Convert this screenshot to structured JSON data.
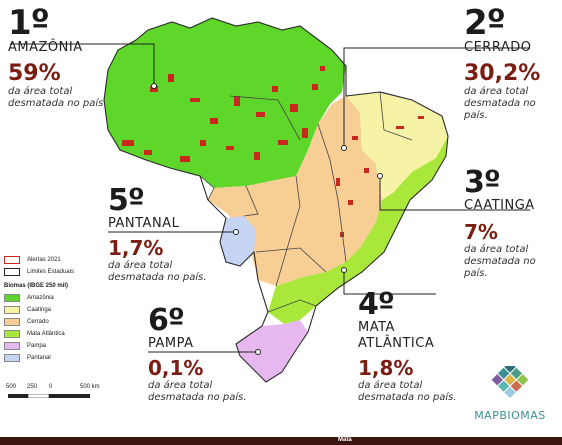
{
  "callouts": [
    {
      "rank": "1º",
      "biome": "AMAZÔNIA",
      "percent": "59%",
      "desc1": "da área total",
      "desc2": "desmatada no país"
    },
    {
      "rank": "2º",
      "biome": "CERRADO",
      "percent": "30,2%",
      "desc1": "da área total",
      "desc2": "desmatada no país."
    },
    {
      "rank": "3º",
      "biome": "CAATINGA",
      "percent": "7%",
      "desc1": "da área total",
      "desc2": "desmatada no país."
    },
    {
      "rank": "4º",
      "biome": "MATA",
      "biome2": "ATLÂNTICA",
      "percent": "1,8%",
      "desc1": "da área total",
      "desc2": "desmatada no país."
    },
    {
      "rank": "5º",
      "biome": "PANTANAL",
      "percent": "1,7%",
      "desc1": "da área total",
      "desc2": "desmatada no país."
    },
    {
      "rank": "6º",
      "biome": "PAMPA",
      "percent": "0,1%",
      "desc1": "da área total",
      "desc2": "desmatada no país."
    }
  ],
  "legend": {
    "alerts": "Alertas 2021",
    "state_limits": "Limites Estaduais",
    "title": "Biomas (IBGE 250 mil)",
    "biomes": [
      {
        "name": "Amazônia",
        "color": "#5fd62a"
      },
      {
        "name": "Caatinga",
        "color": "#f7f3a6"
      },
      {
        "name": "Cerrado",
        "color": "#f7cf95"
      },
      {
        "name": "Mata Atlântica",
        "color": "#a9e83a"
      },
      {
        "name": "Pampa",
        "color": "#e7b8ef"
      },
      {
        "name": "Pantanal",
        "color": "#c6d4f3"
      }
    ]
  },
  "scale": {
    "labels": [
      "500",
      "250",
      "0",
      "500 km"
    ]
  },
  "logo": {
    "text": "MAPBIOMAS"
  },
  "footer": {
    "label": "Mata"
  },
  "colors": {
    "deforestation": "#c8281e",
    "accent": "#7a1d12",
    "border": "#2a2a2a"
  }
}
